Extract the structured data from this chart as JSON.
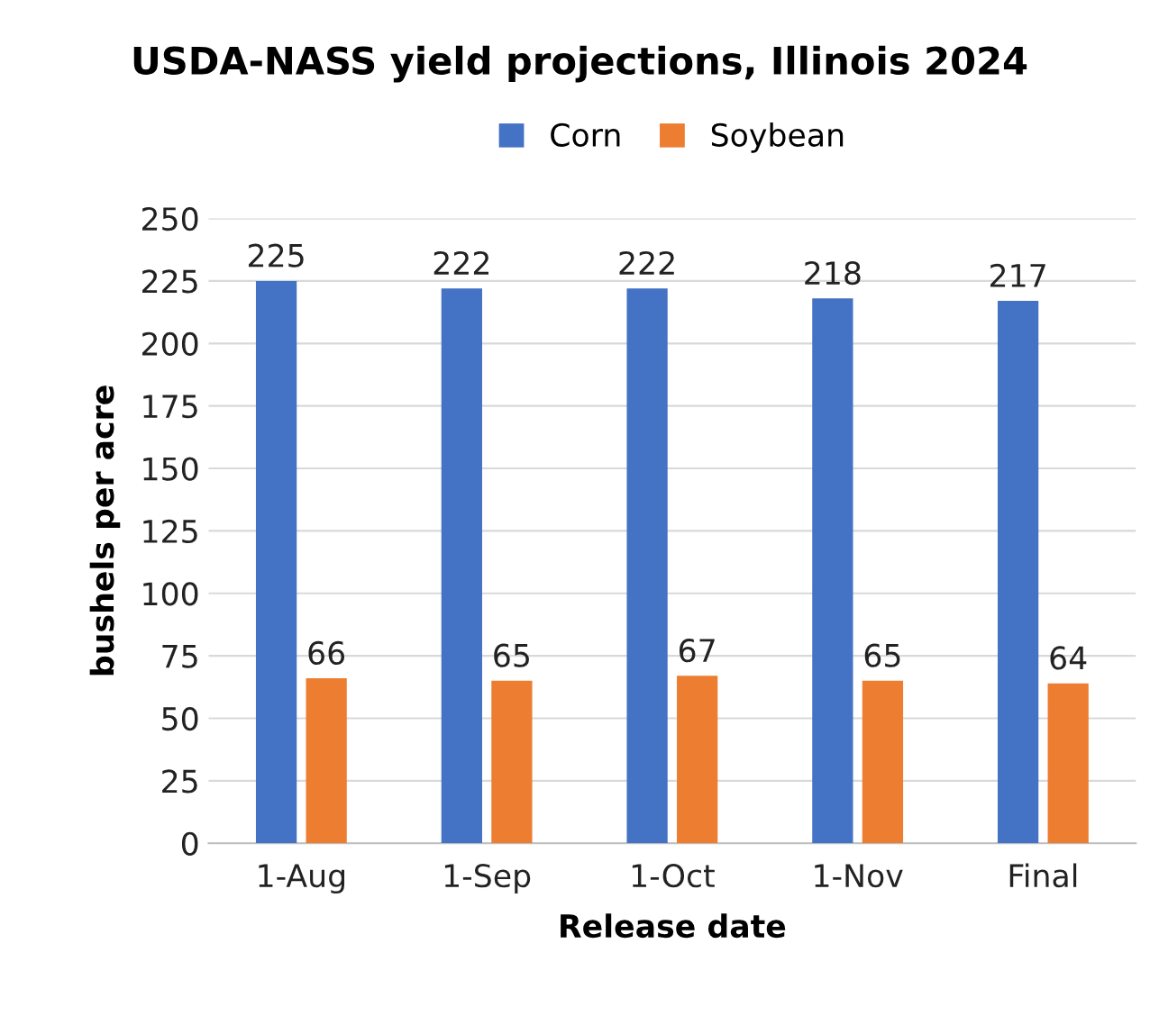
{
  "chart_data": {
    "type": "bar",
    "title": "USDA-NASS yield projections, Illinois 2024",
    "xlabel": "Release date",
    "ylabel": "bushels per acre",
    "categories": [
      "1-Aug",
      "1-Sep",
      "1-Oct",
      "1-Nov",
      "Final"
    ],
    "series": [
      {
        "name": "Corn",
        "color": "#4472c4",
        "values": [
          225,
          222,
          222,
          218,
          217
        ]
      },
      {
        "name": "Soybean",
        "color": "#ed7d31",
        "values": [
          66,
          65,
          67,
          65,
          64
        ]
      }
    ],
    "ylim": [
      0,
      250
    ],
    "yticks": [
      0,
      25,
      50,
      75,
      100,
      125,
      150,
      175,
      200,
      225,
      250
    ],
    "grid": "y",
    "legend": "top",
    "data_labels": true
  }
}
